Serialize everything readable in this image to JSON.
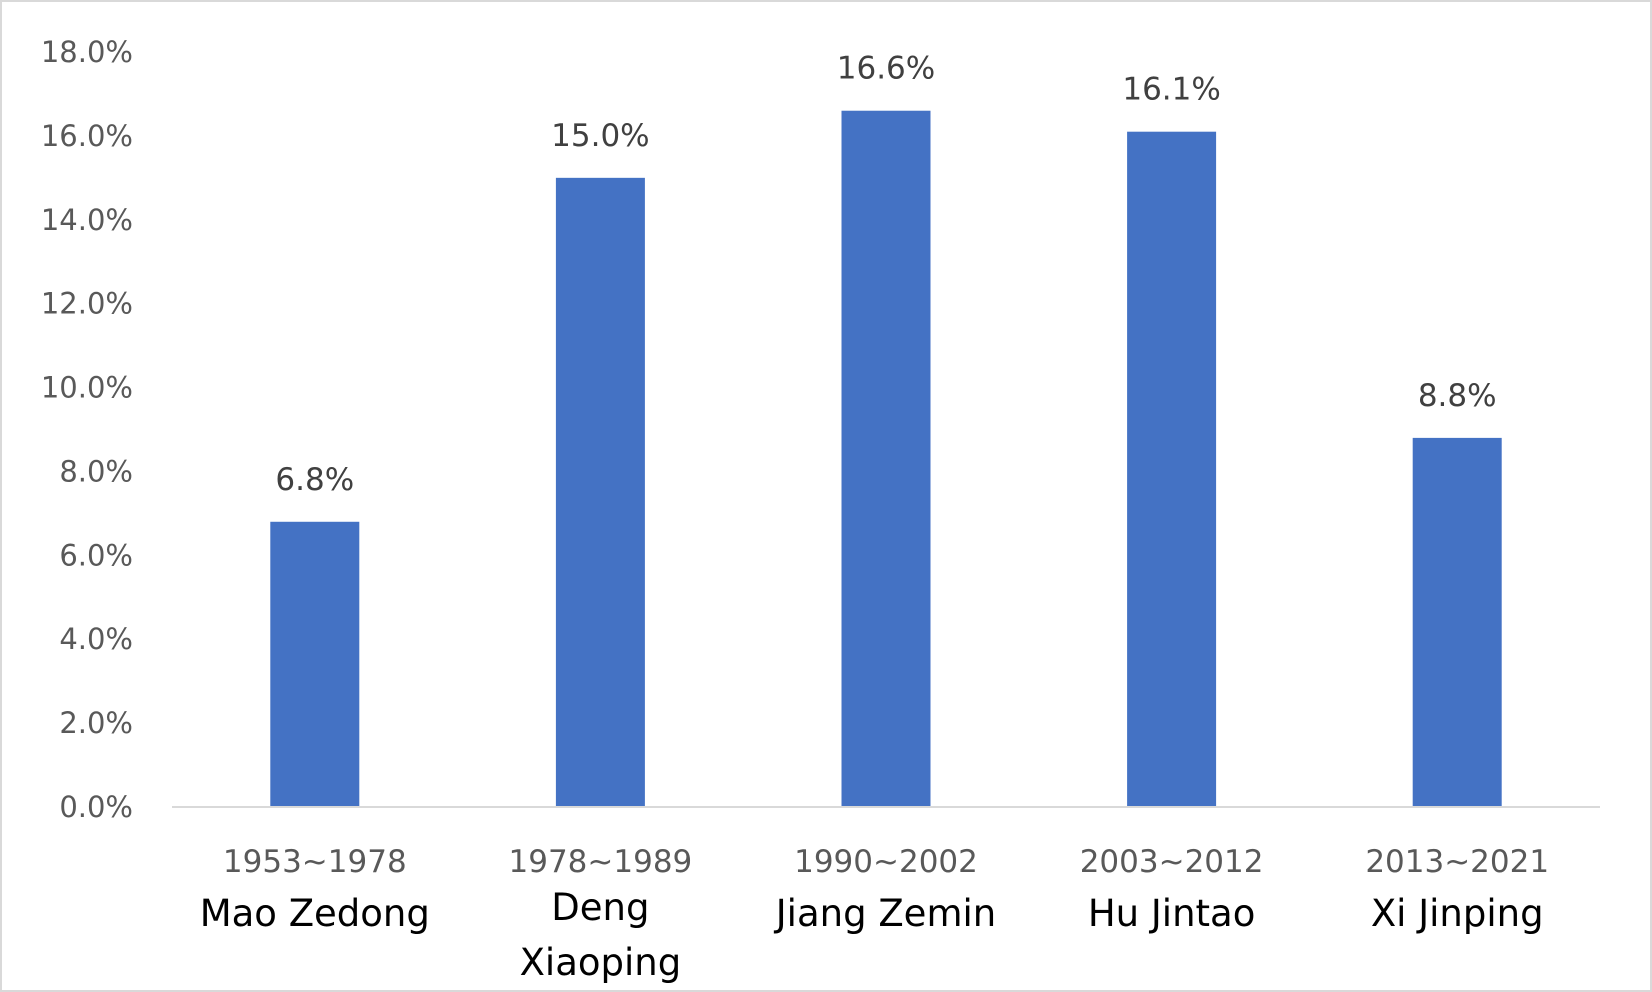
{
  "chart_data": {
    "type": "bar",
    "categories": [
      {
        "period": "1953~1978",
        "leader": [
          "Mao Zedong"
        ]
      },
      {
        "period": "1978~1989",
        "leader": [
          "Deng",
          "Xiaoping"
        ]
      },
      {
        "period": "1990~2002",
        "leader": [
          "Jiang Zemin"
        ]
      },
      {
        "period": "2003~2012",
        "leader": [
          "Hu Jintao"
        ]
      },
      {
        "period": "2013~2021",
        "leader": [
          "Xi Jinping"
        ]
      }
    ],
    "values": [
      6.8,
      15.0,
      16.6,
      16.1,
      8.8
    ],
    "value_labels": [
      "6.8%",
      "15.0%",
      "16.6%",
      "16.1%",
      "8.8%"
    ],
    "yticks": [
      "0.0%",
      "2.0%",
      "4.0%",
      "6.0%",
      "8.0%",
      "10.0%",
      "12.0%",
      "14.0%",
      "16.0%",
      "18.0%"
    ],
    "ylim": [
      0,
      18
    ],
    "title": "",
    "xlabel": "",
    "ylabel": "",
    "grid": false,
    "legend": "none",
    "colors": {
      "bar": "#4472C4",
      "axis": "#D9D9D9",
      "frame": "#D9D9D9"
    }
  }
}
